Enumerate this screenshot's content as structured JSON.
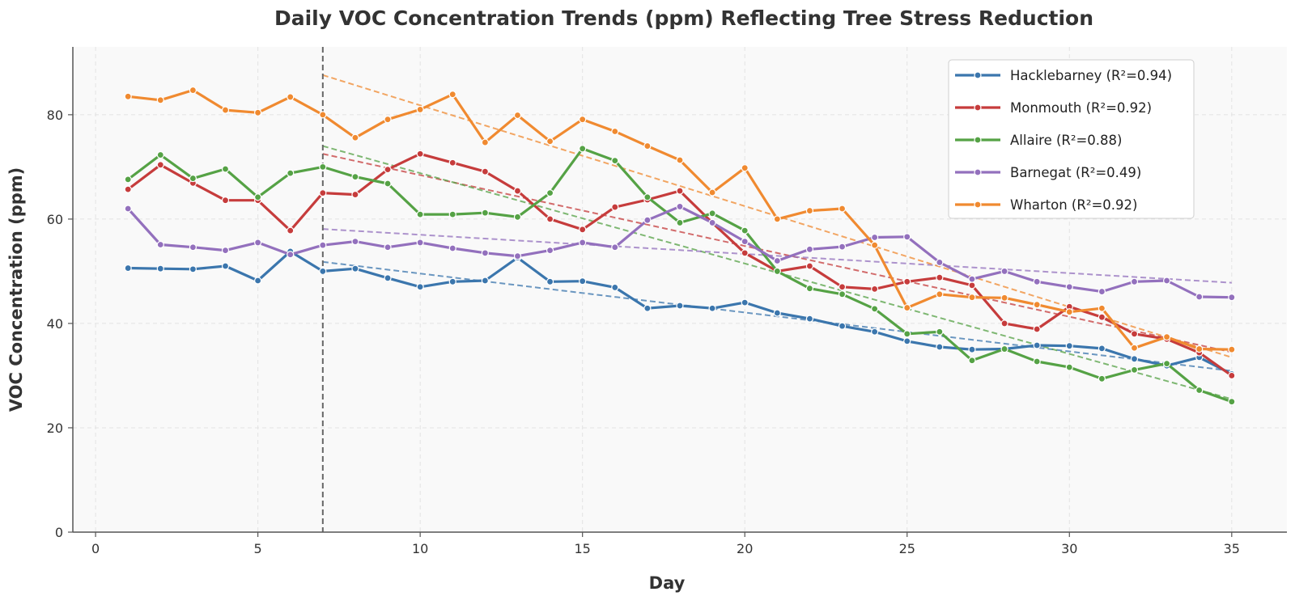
{
  "chart_data": {
    "type": "line",
    "title": "Daily VOC Concentration Trends (ppm) Reflecting Tree Stress Reduction",
    "xlabel": "Day",
    "ylabel": "VOC Concentration (ppm)",
    "xlim": [
      -0.7,
      36.7
    ],
    "ylim": [
      0,
      93
    ],
    "xticks": [
      0,
      5,
      10,
      15,
      20,
      25,
      30,
      35
    ],
    "yticks": [
      0,
      20,
      40,
      60,
      80
    ],
    "grid": true,
    "legend_position": "top-right",
    "intervention_day": 7,
    "x": [
      1,
      2,
      3,
      4,
      5,
      6,
      7,
      8,
      9,
      10,
      11,
      12,
      13,
      14,
      15,
      16,
      17,
      18,
      19,
      20,
      21,
      22,
      23,
      24,
      25,
      26,
      27,
      28,
      29,
      30,
      31,
      32,
      33,
      34,
      35
    ],
    "series": [
      {
        "name": "Hacklebarney (R²=0.94)",
        "color": "#3b76ad",
        "values": [
          50.6,
          50.5,
          50.4,
          51.0,
          48.2,
          53.8,
          50.0,
          50.5,
          48.7,
          47.0,
          48.0,
          48.2,
          52.6,
          48.0,
          48.1,
          46.9,
          42.9,
          43.4,
          42.9,
          44.0,
          42.0,
          40.9,
          39.5,
          38.4,
          36.6,
          35.5,
          35.0,
          35.1,
          35.8,
          35.7,
          35.2,
          33.2,
          31.9,
          33.5,
          30.3
        ],
        "trend": [
          51.8,
          30.9
        ]
      },
      {
        "name": "Monmouth (R²=0.92)",
        "color": "#c63c3c",
        "values": [
          65.7,
          70.4,
          66.9,
          63.6,
          63.6,
          57.8,
          65.0,
          64.7,
          69.5,
          72.5,
          70.8,
          69.1,
          65.4,
          60.0,
          58.0,
          62.3,
          63.7,
          65.4,
          59.3,
          53.5,
          50.0,
          51.0,
          47.0,
          46.6,
          48.0,
          48.8,
          47.3,
          40.0,
          38.9,
          43.2,
          41.2,
          38.0,
          37.0,
          34.4,
          30.0
        ],
        "trend": [
          72.5,
          34.5
        ]
      },
      {
        "name": "Allaire (R²=0.88)",
        "color": "#55a245",
        "values": [
          67.6,
          72.3,
          67.8,
          69.6,
          64.2,
          68.8,
          70.0,
          68.1,
          66.8,
          60.9,
          60.9,
          61.2,
          60.4,
          65.0,
          73.5,
          71.2,
          64.2,
          59.3,
          61.1,
          57.8,
          50.0,
          46.7,
          45.6,
          42.8,
          38.0,
          38.4,
          32.9,
          35.1,
          32.7,
          31.6,
          29.4,
          31.1,
          32.3,
          27.2,
          25.0
        ],
        "trend": [
          74.0,
          25.5
        ]
      },
      {
        "name": "Barnegat (R²=0.49)",
        "color": "#9370bd",
        "values": [
          62.0,
          55.1,
          54.6,
          54.0,
          55.5,
          53.2,
          55.0,
          55.7,
          54.6,
          55.5,
          54.4,
          53.5,
          52.9,
          54.0,
          55.5,
          54.6,
          59.8,
          62.4,
          59.3,
          55.7,
          52.0,
          54.2,
          54.7,
          56.5,
          56.6,
          51.7,
          48.5,
          50.0,
          48.0,
          47.0,
          46.1,
          48.0,
          48.2,
          45.1,
          45.0
        ],
        "trend": [
          58.1,
          47.8
        ]
      },
      {
        "name": "Wharton (R²=0.92)",
        "color": "#f08a30",
        "values": [
          83.5,
          82.8,
          84.7,
          80.9,
          80.4,
          83.4,
          80.0,
          75.6,
          79.1,
          81.0,
          83.9,
          74.7,
          79.9,
          74.9,
          79.1,
          76.8,
          74.0,
          71.3,
          65.1,
          69.8,
          60.0,
          61.6,
          62.0,
          55.0,
          43.0,
          45.6,
          45.0,
          44.9,
          43.6,
          42.2,
          42.9,
          35.3,
          37.4,
          35.1,
          35.0
        ],
        "trend": [
          87.6,
          33.5
        ]
      }
    ]
  }
}
